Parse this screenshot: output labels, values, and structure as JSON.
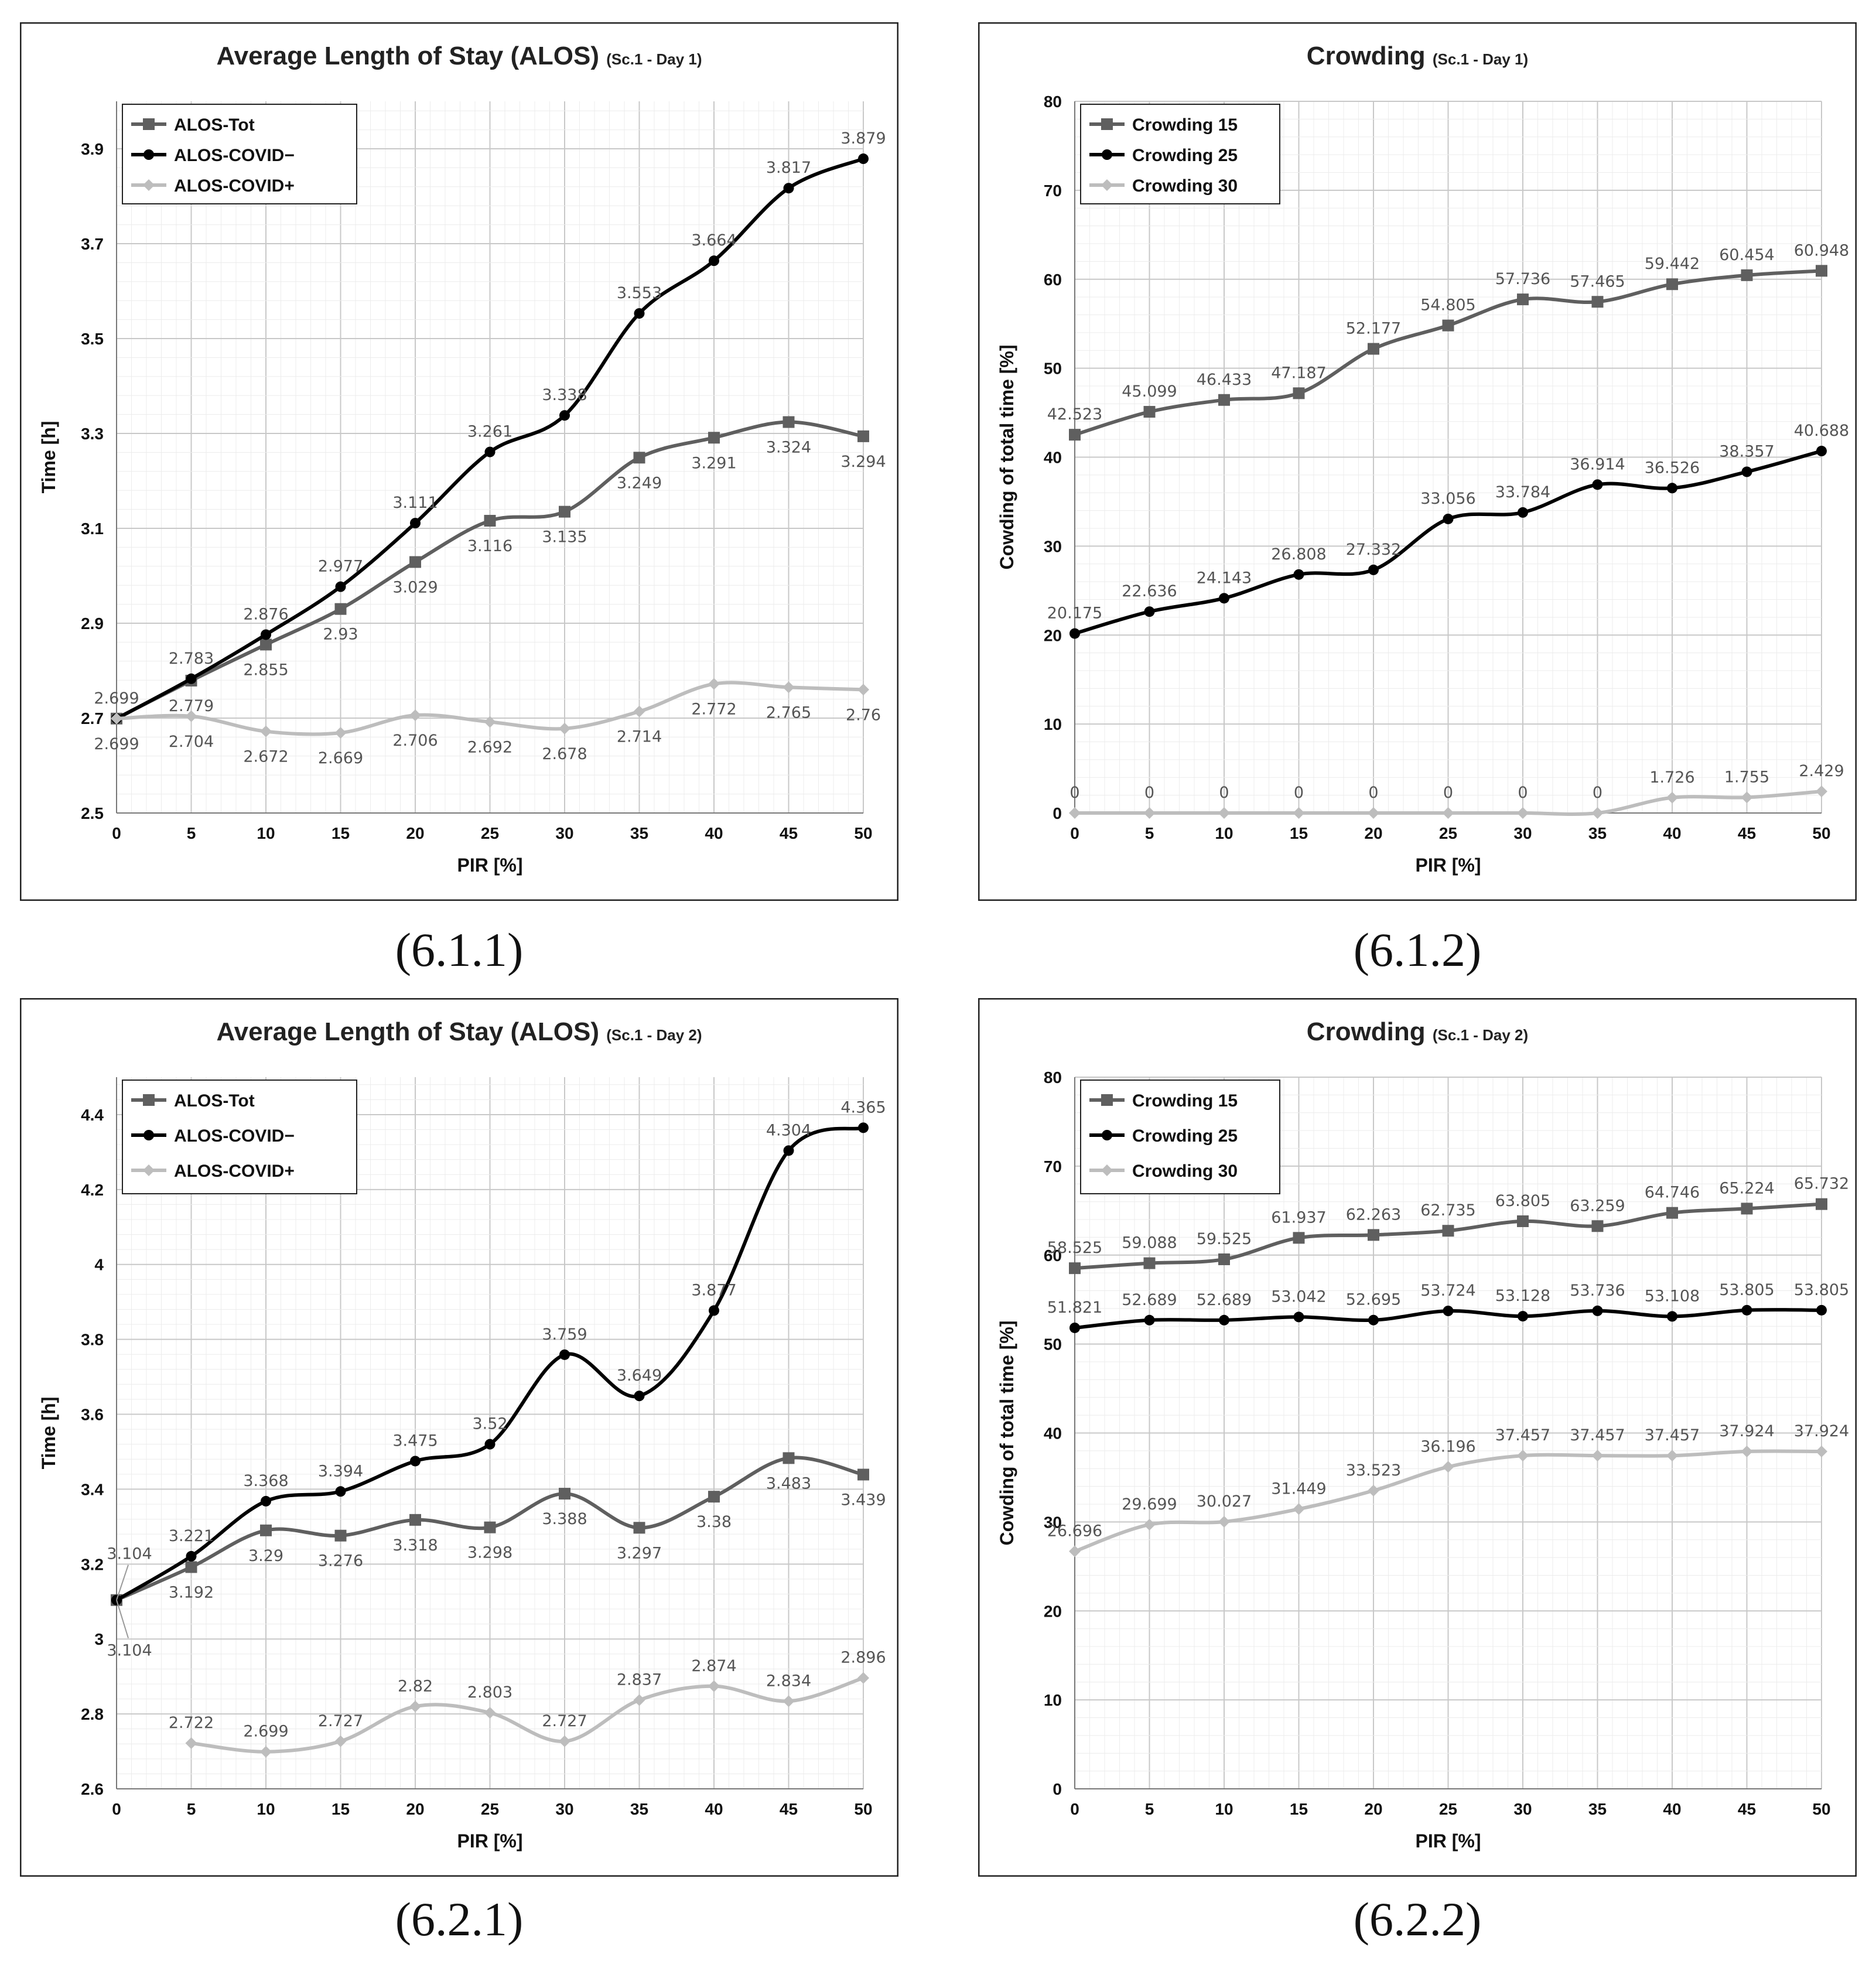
{
  "captions": [
    "(6.1.1)",
    "(6.1.2)",
    "(6.2.1)",
    "(6.2.2)"
  ],
  "chart_data": [
    {
      "type": "line",
      "title": "Average Length of Stay (ALOS)",
      "subtitle": "(Sc.1 - Day 1)",
      "xlabel": "PIR [%]",
      "ylabel": "Time [h]",
      "x": [
        0,
        5,
        10,
        15,
        20,
        25,
        30,
        35,
        40,
        45,
        50
      ],
      "ylim": [
        2.5,
        4.0
      ],
      "yticks": [
        "2.5",
        "2.7",
        "2.9",
        "3.1",
        "3.3",
        "3.5",
        "3.7",
        "3.9"
      ],
      "legend_position": "top-left",
      "series": [
        {
          "name": "ALOS-Tot",
          "color": "#5f5f5f",
          "marker": "square",
          "values": [
            2.699,
            2.779,
            2.855,
            2.93,
            3.029,
            3.116,
            3.135,
            3.249,
            3.291,
            3.324,
            3.294
          ],
          "labels": [
            "",
            "",
            "2.855",
            "2.93",
            "3.029",
            "3.116",
            "3.135",
            "3.249",
            "3.291",
            "3.324",
            "3.294"
          ],
          "label_pos": "below"
        },
        {
          "name": "ALOS-COVID−",
          "color": "#000000",
          "marker": "circle",
          "values": [
            2.699,
            2.783,
            2.876,
            2.977,
            3.111,
            3.261,
            3.338,
            3.553,
            3.664,
            3.817,
            3.879
          ],
          "labels": [
            "2.699",
            "2.783",
            "2.876",
            "2.977",
            "3.111",
            "3.261",
            "3.338",
            "3.553",
            "3.664",
            "3.817",
            "3.879"
          ],
          "label_pos": "above"
        },
        {
          "name": "ALOS-COVID+",
          "color": "#bdbdbd",
          "marker": "diamond",
          "values": [
            2.699,
            2.704,
            2.672,
            2.669,
            2.706,
            2.692,
            2.678,
            2.714,
            2.772,
            2.765,
            2.76
          ],
          "labels": [
            "2.699",
            "2.704",
            "2.672",
            "2.669",
            "2.706",
            "2.692",
            "2.678",
            "2.714",
            "2.772",
            "2.765",
            "2.76"
          ],
          "label_pos": "below"
        }
      ],
      "extra_labels": [
        {
          "x": 5,
          "y": 2.779,
          "text": "2.779",
          "pos": "below"
        }
      ]
    },
    {
      "type": "line",
      "title": "Crowding",
      "subtitle": "(Sc.1 - Day 1)",
      "xlabel": "PIR [%]",
      "ylabel": "Cowding of total time [%]",
      "x": [
        0,
        5,
        10,
        15,
        20,
        25,
        30,
        35,
        40,
        45,
        50
      ],
      "ylim": [
        0,
        80
      ],
      "yticks": [
        "0",
        "10",
        "20",
        "30",
        "40",
        "50",
        "60",
        "70",
        "80"
      ],
      "legend_position": "top-left",
      "series": [
        {
          "name": "Crowding 15",
          "color": "#5f5f5f",
          "marker": "square",
          "values": [
            42.523,
            45.099,
            46.433,
            47.187,
            52.177,
            54.805,
            57.736,
            57.465,
            59.442,
            60.454,
            60.948
          ],
          "labels": [
            "42.523",
            "45.099",
            "46.433",
            "47.187",
            "52.177",
            "54.805",
            "57.736",
            "57.465",
            "59.442",
            "60.454",
            "60.948"
          ],
          "label_pos": "above"
        },
        {
          "name": "Crowding 25",
          "color": "#000000",
          "marker": "circle",
          "values": [
            20.175,
            22.636,
            24.143,
            26.808,
            27.332,
            33.056,
            33.784,
            36.914,
            36.526,
            38.357,
            40.688
          ],
          "labels": [
            "20.175",
            "22.636",
            "24.143",
            "26.808",
            "27.332",
            "33.056",
            "33.784",
            "36.914",
            "36.526",
            "38.357",
            "40.688"
          ],
          "label_pos": "above"
        },
        {
          "name": "Crowding 30",
          "color": "#bdbdbd",
          "marker": "diamond",
          "values": [
            0,
            0,
            0,
            0,
            0,
            0,
            0,
            0,
            1.726,
            1.755,
            2.429
          ],
          "labels": [
            "0",
            "0",
            "0",
            "0",
            "0",
            "0",
            "0",
            "0",
            "1.726",
            "1.755",
            "2.429"
          ],
          "label_pos": "above"
        }
      ]
    },
    {
      "type": "line",
      "title": "Average Length of Stay (ALOS)",
      "subtitle": "(Sc.1 - Day 2)",
      "xlabel": "PIR [%]",
      "ylabel": "Time [h]",
      "x": [
        0,
        5,
        10,
        15,
        20,
        25,
        30,
        35,
        40,
        45,
        50
      ],
      "ylim": [
        2.6,
        4.5
      ],
      "yticks": [
        "2.6",
        "2.8",
        "3",
        "3.2",
        "3.4",
        "3.6",
        "3.8",
        "4",
        "4.2",
        "4.4"
      ],
      "legend_position": "top-left",
      "series": [
        {
          "name": "ALOS-Tot",
          "color": "#5f5f5f",
          "marker": "square",
          "values": [
            3.104,
            3.192,
            3.29,
            3.276,
            3.318,
            3.298,
            3.388,
            3.297,
            3.38,
            3.483,
            3.439
          ],
          "labels": [
            "",
            "3.192",
            "3.29",
            "3.276",
            "3.318",
            "3.298",
            "3.388",
            "3.297",
            "3.38",
            "3.483",
            "3.439"
          ],
          "label_pos": "below"
        },
        {
          "name": "ALOS-COVID−",
          "color": "#000000",
          "marker": "circle",
          "values": [
            3.104,
            3.221,
            3.368,
            3.394,
            3.475,
            3.52,
            3.759,
            3.649,
            3.877,
            4.304,
            4.365
          ],
          "labels": [
            "",
            "3.221",
            "3.368",
            "3.394",
            "3.475",
            "3.52",
            "3.759",
            "3.649",
            "3.877",
            "4.304",
            "4.365"
          ],
          "label_pos": "above"
        },
        {
          "name": "ALOS-COVID+",
          "color": "#bdbdbd",
          "marker": "diamond",
          "values": [
            null,
            2.722,
            2.699,
            2.727,
            2.82,
            2.803,
            2.727,
            2.837,
            2.874,
            2.834,
            2.896
          ],
          "labels": [
            "",
            "2.722",
            "2.699",
            "2.727",
            "2.82",
            "2.803",
            "2.727",
            "2.837",
            "2.874",
            "2.834",
            "2.896"
          ],
          "label_pos": "above"
        }
      ],
      "callouts": [
        {
          "x": 0,
          "y": 3.104,
          "text": "3.104",
          "pos": "above"
        },
        {
          "x": 0,
          "y": 3.104,
          "text": "3.104",
          "pos": "below"
        }
      ]
    },
    {
      "type": "line",
      "title": "Crowding",
      "subtitle": "(Sc.1 - Day 2)",
      "xlabel": "PIR [%]",
      "ylabel": "Cowding of total time [%]",
      "x": [
        0,
        5,
        10,
        15,
        20,
        25,
        30,
        35,
        40,
        45,
        50
      ],
      "ylim": [
        0,
        80
      ],
      "yticks": [
        "0",
        "10",
        "20",
        "30",
        "40",
        "50",
        "60",
        "70",
        "80"
      ],
      "legend_position": "top-left",
      "series": [
        {
          "name": "Crowding 15",
          "color": "#5f5f5f",
          "marker": "square",
          "values": [
            58.525,
            59.088,
            59.525,
            61.937,
            62.263,
            62.735,
            63.805,
            63.259,
            64.746,
            65.224,
            65.732
          ],
          "labels": [
            "58.525",
            "59.088",
            "59.525",
            "61.937",
            "62.263",
            "62.735",
            "63.805",
            "63.259",
            "64.746",
            "65.224",
            "65.732"
          ],
          "label_pos": "above"
        },
        {
          "name": "Crowding 25",
          "color": "#000000",
          "marker": "circle",
          "values": [
            51.821,
            52.689,
            52.689,
            53.042,
            52.695,
            53.724,
            53.128,
            53.736,
            53.108,
            53.805,
            53.805
          ],
          "labels": [
            "51.821",
            "52.689",
            "52.689",
            "53.042",
            "52.695",
            "53.724",
            "53.128",
            "53.736",
            "53.108",
            "53.805",
            "53.805"
          ],
          "label_pos": "above"
        },
        {
          "name": "Crowding 30",
          "color": "#bdbdbd",
          "marker": "diamond",
          "values": [
            26.696,
            29.699,
            30.027,
            31.449,
            33.523,
            36.196,
            37.457,
            37.457,
            37.457,
            37.924,
            37.924
          ],
          "labels": [
            "26.696",
            "29.699",
            "30.027",
            "31.449",
            "33.523",
            "36.196",
            "37.457",
            "37.457",
            "37.457",
            "37.924",
            "37.924"
          ],
          "label_pos": "above"
        }
      ]
    }
  ]
}
